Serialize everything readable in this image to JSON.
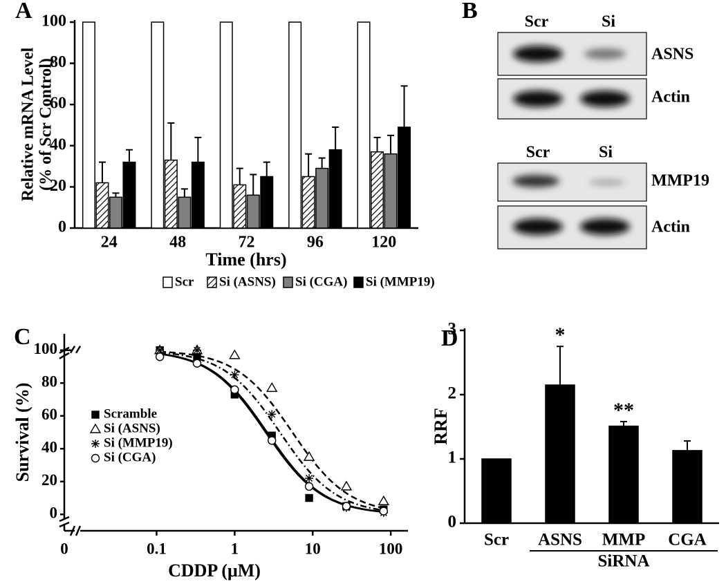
{
  "chart_data": [
    {
      "type": "bar",
      "label": "A",
      "ylabel": [
        "Relative mRNA Level",
        "(% of Scr Control)"
      ],
      "xlabel": "Time (hrs)",
      "categories": [
        "24",
        "48",
        "72",
        "96",
        "120"
      ],
      "ylim": [
        0,
        100
      ],
      "yticks": [
        0,
        20,
        40,
        60,
        80,
        100
      ],
      "series": [
        {
          "name": "Scr",
          "color": "#ffffff",
          "values": [
            100,
            100,
            100,
            100,
            100
          ]
        },
        {
          "name": "Si (ASNS)",
          "color": "#ffffff",
          "hatch": true,
          "values": [
            22,
            33,
            21,
            25,
            37
          ],
          "error": [
            10,
            18,
            8,
            11,
            7
          ]
        },
        {
          "name": "Si (CGA)",
          "color": "#808080",
          "values": [
            15,
            15,
            16,
            29,
            36
          ],
          "error": [
            2,
            4,
            10,
            5,
            9
          ]
        },
        {
          "name": "Si (MMP19)",
          "color": "#000000",
          "values": [
            32,
            32,
            25,
            38,
            49
          ],
          "error": [
            6,
            12,
            7,
            11,
            20
          ]
        }
      ]
    },
    {
      "type": "blot",
      "label": "B",
      "blots": [
        {
          "lanes": [
            "Scr",
            "Si"
          ],
          "rows": [
            "ASNS",
            "Actin"
          ]
        },
        {
          "lanes": [
            "Scr",
            "Si"
          ],
          "rows": [
            "MMP19",
            "Actin"
          ]
        }
      ]
    },
    {
      "type": "scatter",
      "label": "C",
      "xlabel": "CDDP (μM)",
      "ylabel": "Survival (%)",
      "xscale": "log",
      "xlim": [
        0.0114,
        166
      ],
      "xticks": [
        0.1,
        1,
        10,
        100
      ],
      "x_break_tick": 0,
      "ylim": [
        -10,
        110
      ],
      "yticks": [
        0,
        20,
        40,
        60,
        80,
        100
      ],
      "x": [
        0.11,
        0.33,
        1,
        3,
        9,
        27,
        81
      ],
      "series": [
        {
          "name": "Scramble",
          "marker": "square",
          "dash": "solid",
          "values": [
            100,
            96,
            73,
            48,
            10,
            5,
            3
          ],
          "fit": {
            "ic50": 2.6,
            "hill": 1.2
          }
        },
        {
          "name": "Si (ASNS)",
          "marker": "triangle",
          "dash": "dashed",
          "values": [
            100,
            100,
            97,
            77,
            35,
            17,
            8
          ],
          "fit": {
            "ic50": 5.5,
            "hill": 1.2
          }
        },
        {
          "name": "Si (MMP19)",
          "marker": "asterisk",
          "dash": "dashdot",
          "values": [
            100,
            100,
            85,
            61,
            22,
            4,
            1
          ],
          "fit": {
            "ic50": 3.8,
            "hill": 1.2
          }
        },
        {
          "name": "Si (CGA)",
          "marker": "circle",
          "dash": "solid",
          "values": [
            96,
            92,
            76,
            45,
            17,
            5,
            2
          ],
          "fit": {
            "ic50": 2.5,
            "hill": 1.2
          }
        }
      ]
    },
    {
      "type": "bar",
      "label": "D",
      "ylabel": "RRF",
      "group_label": "SiRNA",
      "categories": [
        "Scr",
        "ASNS",
        "MMP",
        "CGA"
      ],
      "ylim": [
        0,
        3
      ],
      "yticks": [
        0,
        1,
        2,
        3
      ],
      "series": [
        {
          "color": "#000000",
          "values": [
            1,
            2.15,
            1.51,
            1.13
          ],
          "error": [
            null,
            0.6,
            0.07,
            0.15
          ],
          "significance": [
            null,
            "*",
            "**",
            null
          ]
        }
      ]
    }
  ]
}
